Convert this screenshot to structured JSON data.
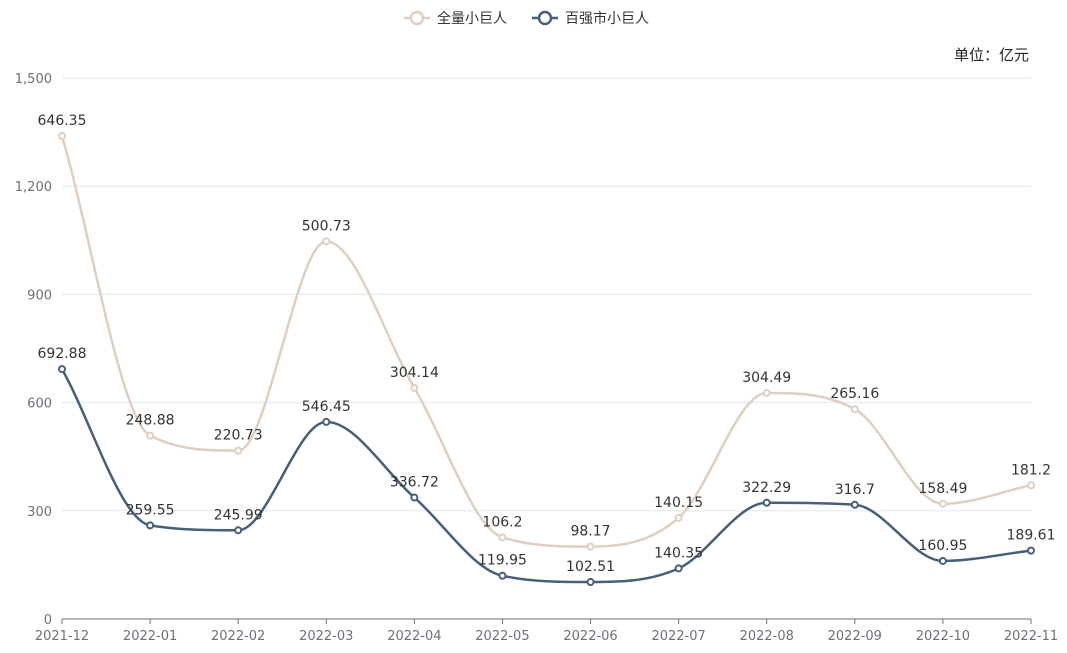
{
  "chart_data": {
    "type": "line",
    "unit_label": "单位：亿元",
    "categories": [
      "2021-12",
      "2022-01",
      "2022-02",
      "2022-03",
      "2022-04",
      "2022-05",
      "2022-06",
      "2022-07",
      "2022-08",
      "2022-09",
      "2022-10",
      "2022-11"
    ],
    "ylim": [
      0,
      1500
    ],
    "yticks": [
      "0",
      "300",
      "600",
      "900",
      "1,200",
      "1,500"
    ],
    "ytick_values": [
      0,
      300,
      600,
      900,
      1200,
      1500
    ],
    "grid": true,
    "legend_position": "top-center",
    "smooth": true,
    "series": [
      {
        "name": "全量小巨人",
        "color": "#dfcfc2",
        "values": [
          1339.23,
          508.43,
          466.72,
          1047.18,
          640.86,
          226.15,
          200.68,
          280.5,
          626.78,
          581.86,
          319.44,
          370.81
        ],
        "labels": [
          "646.35",
          "248.88",
          "220.73",
          "500.73",
          "304.14",
          "106.2",
          "98.17",
          "140.15",
          "304.49",
          "265.16",
          "158.49",
          "181.2"
        ]
      },
      {
        "name": "百强市小巨人",
        "color": "#475f7a",
        "values": [
          692.88,
          259.55,
          245.99,
          546.45,
          336.72,
          119.95,
          102.51,
          140.35,
          322.29,
          316.7,
          160.95,
          189.61
        ],
        "labels": [
          "692.88",
          "259.55",
          "245.99",
          "546.45",
          "336.72",
          "119.95",
          "102.51",
          "140.35",
          "322.29",
          "316.7",
          "160.95",
          "189.61"
        ]
      }
    ]
  }
}
